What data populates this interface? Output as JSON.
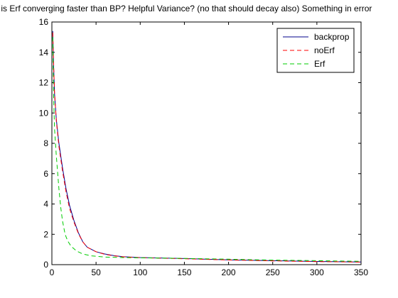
{
  "chart_data": {
    "type": "line",
    "title": "y is Erf converging faster than BP? Helpful Variance? (no that should decay also) Something in error",
    "xlabel": "",
    "ylabel": "",
    "xlim": [
      0,
      350
    ],
    "ylim": [
      0,
      16
    ],
    "x_ticks": [
      0,
      50,
      100,
      150,
      200,
      250,
      300,
      350
    ],
    "y_ticks": [
      0,
      2,
      4,
      6,
      8,
      10,
      12,
      14,
      16
    ],
    "grid": false,
    "legend_position": "top-right",
    "series": [
      {
        "name": "backprop",
        "color": "#00008B",
        "style": "solid",
        "points": [
          [
            1,
            15.4
          ],
          [
            2,
            13.0
          ],
          [
            3,
            11.3
          ],
          [
            5,
            9.6
          ],
          [
            8,
            8.0
          ],
          [
            12,
            6.4
          ],
          [
            16,
            5.0
          ],
          [
            20,
            3.9
          ],
          [
            25,
            2.9
          ],
          [
            30,
            2.1
          ],
          [
            35,
            1.5
          ],
          [
            40,
            1.15
          ],
          [
            50,
            0.85
          ],
          [
            60,
            0.7
          ],
          [
            70,
            0.6
          ],
          [
            80,
            0.53
          ],
          [
            100,
            0.47
          ],
          [
            150,
            0.4
          ],
          [
            200,
            0.32
          ],
          [
            250,
            0.26
          ],
          [
            300,
            0.21
          ],
          [
            350,
            0.18
          ]
        ]
      },
      {
        "name": "noErf",
        "color": "#FF0000",
        "style": "dashed",
        "points": [
          [
            1,
            15.3
          ],
          [
            2,
            13.1
          ],
          [
            3,
            11.4
          ],
          [
            5,
            9.5
          ],
          [
            8,
            7.8
          ],
          [
            12,
            6.2
          ],
          [
            16,
            4.8
          ],
          [
            20,
            3.7
          ],
          [
            25,
            2.8
          ],
          [
            30,
            2.05
          ],
          [
            35,
            1.5
          ],
          [
            40,
            1.15
          ],
          [
            50,
            0.85
          ],
          [
            60,
            0.68
          ],
          [
            70,
            0.58
          ],
          [
            80,
            0.52
          ],
          [
            100,
            0.46
          ],
          [
            150,
            0.39
          ],
          [
            200,
            0.31
          ],
          [
            250,
            0.25
          ],
          [
            300,
            0.2
          ],
          [
            350,
            0.17
          ]
        ]
      },
      {
        "name": "Erf",
        "color": "#00CC00",
        "style": "dashed",
        "points": [
          [
            1,
            15.0
          ],
          [
            2,
            11.0
          ],
          [
            3,
            9.0
          ],
          [
            5,
            7.2
          ],
          [
            8,
            5.0
          ],
          [
            10,
            3.8
          ],
          [
            12,
            2.9
          ],
          [
            15,
            2.0
          ],
          [
            18,
            1.55
          ],
          [
            22,
            1.2
          ],
          [
            28,
            0.9
          ],
          [
            35,
            0.7
          ],
          [
            45,
            0.58
          ],
          [
            60,
            0.5
          ],
          [
            80,
            0.47
          ],
          [
            100,
            0.45
          ],
          [
            150,
            0.41
          ],
          [
            200,
            0.36
          ],
          [
            250,
            0.3
          ],
          [
            300,
            0.26
          ],
          [
            350,
            0.22
          ]
        ]
      }
    ]
  }
}
